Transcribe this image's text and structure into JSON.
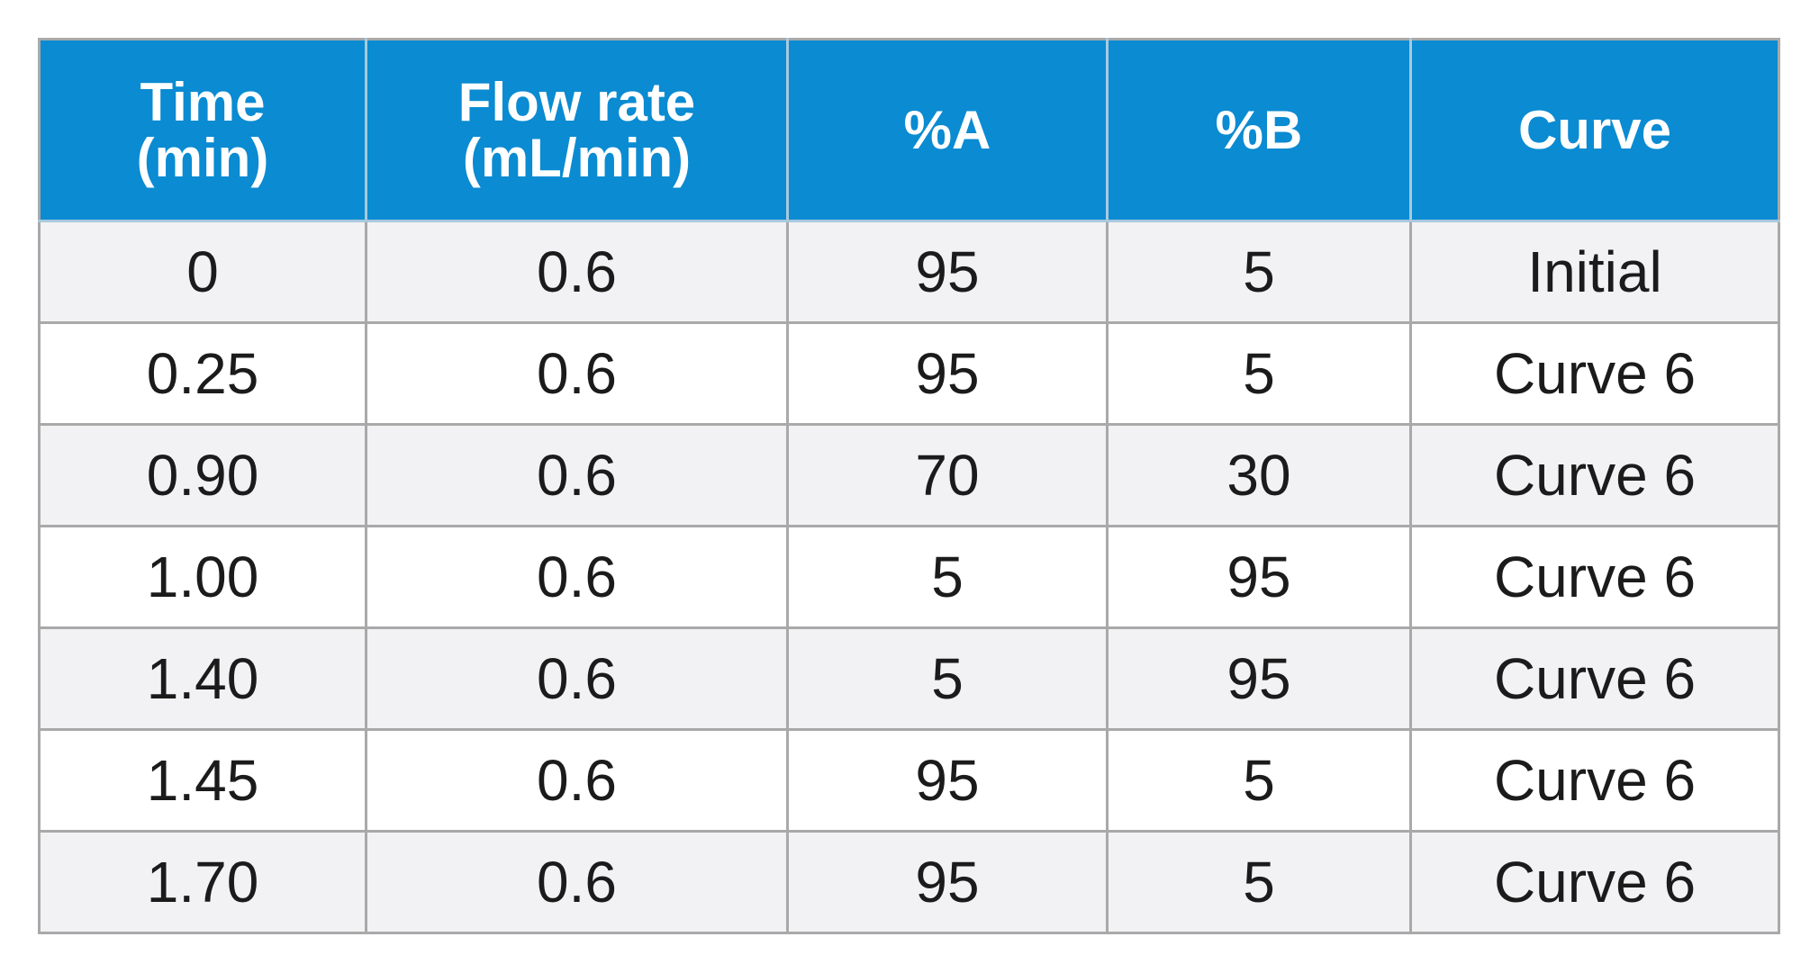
{
  "table": {
    "columns": [
      {
        "line1": "Time",
        "line2": "(min)"
      },
      {
        "line1": "Flow rate",
        "line2": "(mL/min)"
      },
      {
        "line1": "%A",
        "line2": ""
      },
      {
        "line1": "%B",
        "line2": ""
      },
      {
        "line1": "Curve",
        "line2": ""
      }
    ],
    "rows": [
      [
        "0",
        "0.6",
        "95",
        "5",
        "Initial"
      ],
      [
        "0.25",
        "0.6",
        "95",
        "5",
        "Curve 6"
      ],
      [
        "0.90",
        "0.6",
        "70",
        "30",
        "Curve 6"
      ],
      [
        "1.00",
        "0.6",
        "5",
        "95",
        "Curve 6"
      ],
      [
        "1.40",
        "0.6",
        "5",
        "95",
        "Curve 6"
      ],
      [
        "1.45",
        "0.6",
        "95",
        "5",
        "Curve 6"
      ],
      [
        "1.70",
        "0.6",
        "95",
        "5",
        "Curve 6"
      ]
    ]
  },
  "colors": {
    "header_bg": "#0a8bd2",
    "header_text": "#ffffff",
    "row_alt_bg": "#f2f2f4",
    "border": "#a9a9a9"
  }
}
